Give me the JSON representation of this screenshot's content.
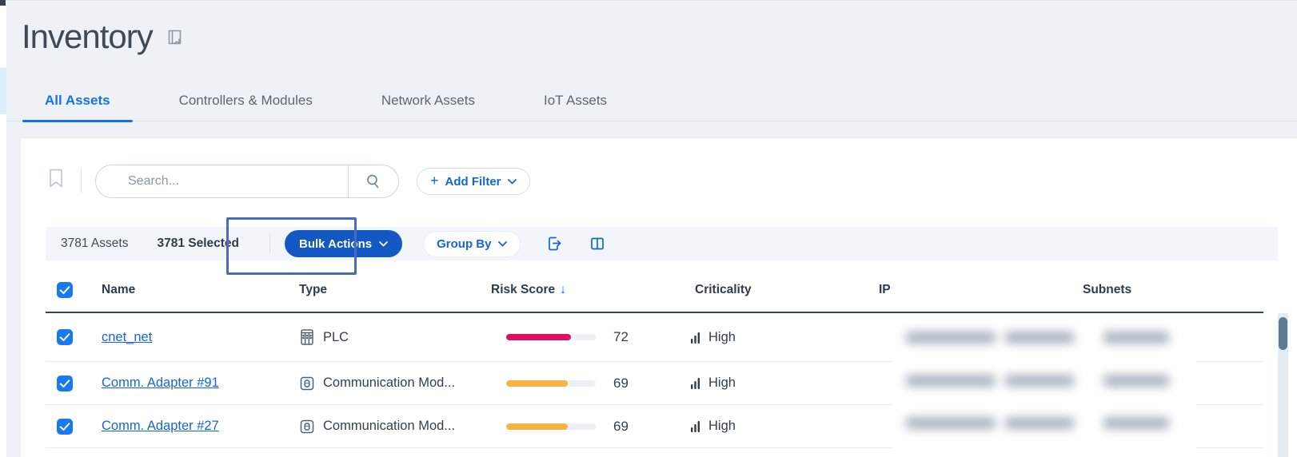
{
  "page": {
    "title": "Inventory"
  },
  "tabs": [
    {
      "label": "All Assets",
      "active": true
    },
    {
      "label": "Controllers & Modules",
      "active": false
    },
    {
      "label": "Network Assets",
      "active": false
    },
    {
      "label": "IoT Assets",
      "active": false
    }
  ],
  "filters": {
    "search_placeholder": "Search...",
    "add_filter_plus": "+",
    "add_filter_label": "Add Filter"
  },
  "toolbar": {
    "assets_count": "3781 Assets",
    "selected_count": "3781 Selected",
    "bulk_actions_label": "Bulk Actions",
    "group_by_label": "Group By"
  },
  "table": {
    "columns": {
      "name": "Name",
      "type": "Type",
      "risk_score": "Risk Score",
      "sort_arrow": "↓",
      "criticality": "Criticality",
      "ip": "IP",
      "subnets": "Subnets"
    },
    "sort": {
      "column": "Risk Score",
      "direction": "descending"
    },
    "rows": [
      {
        "name": "cnet_net",
        "type": "PLC",
        "type_icon": "plc-icon",
        "risk_score": 72,
        "risk_color": "#db1162",
        "criticality": "High",
        "selected": true,
        "ip_redacted": true,
        "subnets_redacted": true
      },
      {
        "name": "Comm. Adapter #91",
        "type": "Communication Mod...",
        "type_icon": "communication-module-icon",
        "risk_score": 69,
        "risk_color": "#f6b445",
        "criticality": "High",
        "selected": true,
        "ip_redacted": true,
        "subnets_redacted": true
      },
      {
        "name": "Comm. Adapter #27",
        "type": "Communication Mod...",
        "type_icon": "communication-module-icon",
        "risk_score": 69,
        "risk_color": "#f6b445",
        "criticality": "High",
        "selected": true,
        "ip_redacted": true,
        "subnets_redacted": true
      }
    ]
  },
  "annotation": {
    "target": "bulk-actions-button",
    "border_color": "#4a6ac0"
  },
  "colors": {
    "accent_blue": "#1566d4",
    "active_tab": "#1771e6",
    "bulk_button_bg": "#1458c4",
    "risk_high": "#db1162",
    "risk_medium": "#f6b445",
    "checkbox_blue": "#1879f0"
  }
}
